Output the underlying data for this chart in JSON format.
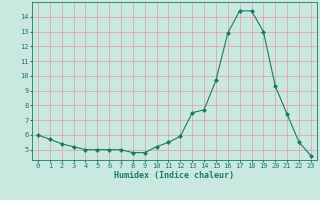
{
  "x": [
    0,
    1,
    2,
    3,
    4,
    5,
    6,
    7,
    8,
    9,
    10,
    11,
    12,
    13,
    14,
    15,
    16,
    17,
    18,
    19,
    20,
    21,
    22,
    23
  ],
  "y": [
    6.0,
    5.7,
    5.4,
    5.2,
    5.0,
    5.0,
    5.0,
    5.0,
    4.8,
    4.8,
    5.2,
    5.5,
    5.9,
    7.5,
    7.7,
    9.7,
    12.9,
    14.4,
    14.4,
    13.0,
    9.3,
    7.4,
    5.5,
    4.6
  ],
  "line_color": "#1a7a6a",
  "marker": "D",
  "marker_size": 2.0,
  "bg_color": "#c8e8e0",
  "grid_color": "#e0a8a8",
  "xlabel": "Humidex (Indice chaleur)",
  "xlim": [
    -0.5,
    23.5
  ],
  "ylim": [
    4.3,
    15.0
  ],
  "yticks": [
    5,
    6,
    7,
    8,
    9,
    10,
    11,
    12,
    13,
    14
  ],
  "xticks": [
    0,
    1,
    2,
    3,
    4,
    5,
    6,
    7,
    8,
    9,
    10,
    11,
    12,
    13,
    14,
    15,
    16,
    17,
    18,
    19,
    20,
    21,
    22,
    23
  ],
  "tick_color": "#1a7a6a",
  "font_family": "monospace",
  "xlabel_fontsize": 6.0,
  "tick_fontsize": 5.0
}
